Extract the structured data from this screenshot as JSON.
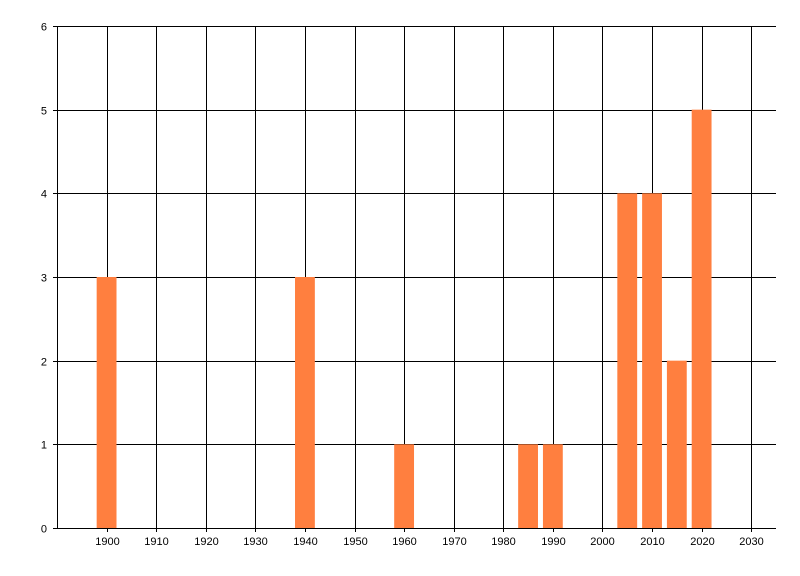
{
  "chart_data": {
    "type": "bar",
    "title": "",
    "xlabel": "",
    "ylabel": "",
    "x": [
      1900,
      1940,
      1960,
      1985,
      1990,
      2005,
      2010,
      2015,
      2020
    ],
    "values": [
      3,
      3,
      1,
      1,
      1,
      4,
      4,
      2,
      5
    ],
    "bar_width_years": 4,
    "xlim": [
      1890,
      2035
    ],
    "ylim": [
      0,
      6
    ],
    "xticks": [
      1900,
      1910,
      1920,
      1930,
      1940,
      1950,
      1960,
      1970,
      1980,
      1990,
      2000,
      2010,
      2020,
      2030
    ],
    "yticks": [
      0,
      1,
      2,
      3,
      4,
      5,
      6
    ],
    "grid": true,
    "legend": "none",
    "bar_color": "#FF7F3F",
    "grid_color": "#000000"
  }
}
